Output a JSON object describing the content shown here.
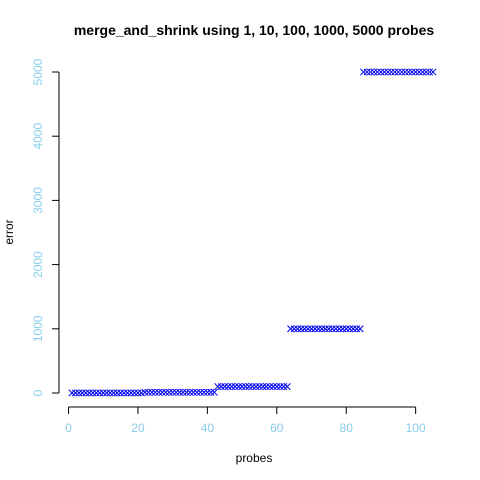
{
  "chart_data": {
    "type": "scatter",
    "title": "merge_and_shrink   using 1, 10, 100, 1000, 5000 probes",
    "xlabel": "probes",
    "ylabel": "error",
    "xlim": [
      1,
      105
    ],
    "ylim": [
      0,
      5000
    ],
    "x_ticks": [
      0,
      20,
      40,
      60,
      80,
      100
    ],
    "y_ticks": [
      0,
      1000,
      2000,
      3000,
      4000,
      5000
    ],
    "marker": "x",
    "grid": false,
    "colors": {
      "points": "#0000EE",
      "tick_labels": "#87CEEB",
      "axis": "#000000"
    },
    "series": [
      {
        "x_range": [
          1,
          21
        ],
        "y": 1
      },
      {
        "x_range": [
          22,
          42
        ],
        "y": 10
      },
      {
        "x_range": [
          43,
          63
        ],
        "y": 100
      },
      {
        "x_range": [
          64,
          84
        ],
        "y": 1000
      },
      {
        "x_range": [
          85,
          105
        ],
        "y": 5000
      }
    ]
  }
}
